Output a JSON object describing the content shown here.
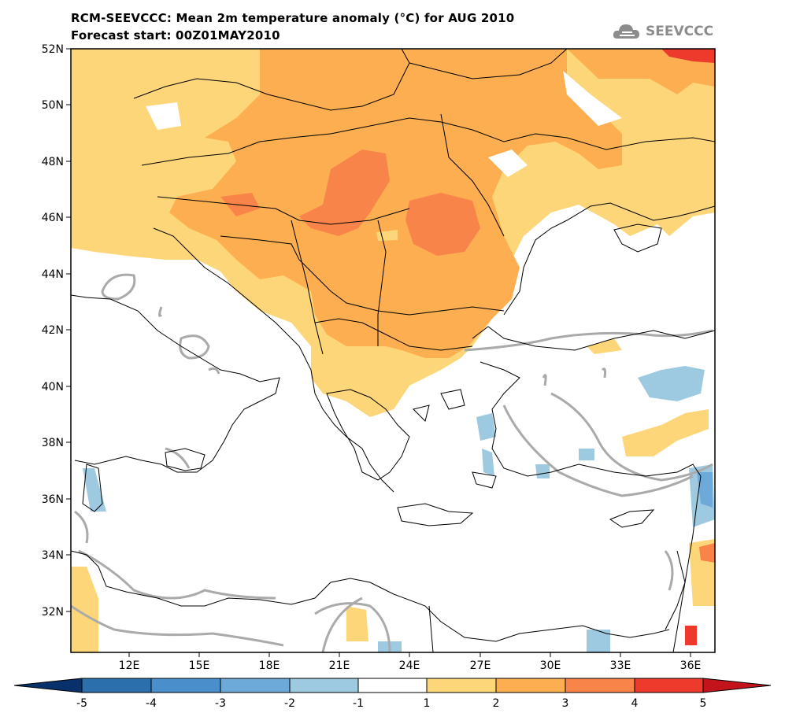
{
  "title": {
    "line1": "RCM-SEEVCCC: Mean 2m temperature anomaly (°C) for AUG 2010",
    "line2": "Forecast start: 00Z01MAY2010"
  },
  "logo": {
    "text": "SEEVCCC",
    "icon": "cloud-icon"
  },
  "map": {
    "lat_range": [
      30.5,
      52
    ],
    "lon_range": [
      9.5,
      37
    ],
    "lat_ticks": [
      "52N",
      "50N",
      "48N",
      "46N",
      "44N",
      "42N",
      "40N",
      "38N",
      "36N",
      "34N",
      "32N"
    ],
    "lon_ticks": [
      "12E",
      "15E",
      "18E",
      "21E",
      "24E",
      "27E",
      "30E",
      "33E",
      "36E"
    ]
  },
  "colorbar": {
    "labels": [
      "-5",
      "-4",
      "-3",
      "-2",
      "-1",
      "1",
      "2",
      "3",
      "4",
      "5"
    ],
    "colors": [
      "#08306b",
      "#2c6fad",
      "#4a8fcb",
      "#6eaad9",
      "#9ecae1",
      "#ffffff",
      "#fdd67a",
      "#fcae50",
      "#f8844a",
      "#ee3a2c",
      "#c4141b"
    ]
  }
}
